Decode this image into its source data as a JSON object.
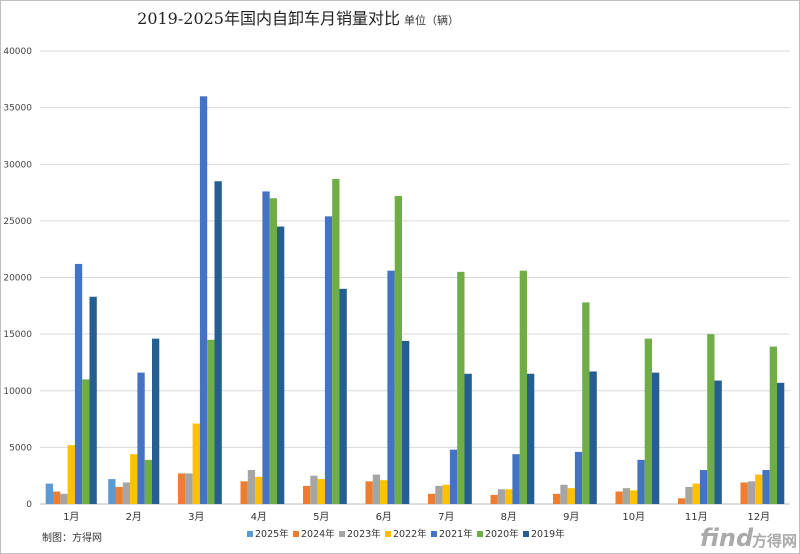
{
  "chart_data": {
    "type": "bar",
    "title": "2019-2025年国内自卸车月销量对比",
    "unit_label": "单位（辆）",
    "categories": [
      "1月",
      "2月",
      "3月",
      "4月",
      "5月",
      "6月",
      "7月",
      "8月",
      "9月",
      "10月",
      "11月",
      "12月"
    ],
    "ylim": [
      0,
      40000
    ],
    "yticks": [
      0,
      5000,
      10000,
      15000,
      20000,
      25000,
      30000,
      35000,
      40000
    ],
    "grid": true,
    "legend_position": "bottom",
    "series": [
      {
        "name": "2025年",
        "color": "#5b9bd5",
        "values": [
          1800,
          2200,
          null,
          null,
          null,
          null,
          null,
          null,
          null,
          null,
          null,
          null
        ]
      },
      {
        "name": "2024年",
        "color": "#ed7d31",
        "values": [
          1100,
          1500,
          2700,
          2000,
          1600,
          2000,
          900,
          800,
          900,
          1100,
          500,
          1900
        ]
      },
      {
        "name": "2023年",
        "color": "#a5a5a5",
        "values": [
          900,
          1900,
          2700,
          3000,
          2500,
          2600,
          1600,
          1300,
          1700,
          1400,
          1500,
          2000
        ]
      },
      {
        "name": "2022年",
        "color": "#ffc000",
        "values": [
          5200,
          4400,
          7100,
          2400,
          2200,
          2100,
          1700,
          1300,
          1400,
          1200,
          1800,
          2600
        ]
      },
      {
        "name": "2021年",
        "color": "#4472c4",
        "values": [
          21200,
          11600,
          36000,
          27600,
          25400,
          20600,
          4800,
          4400,
          4600,
          3900,
          3000,
          3000
        ]
      },
      {
        "name": "2020年",
        "color": "#70ad47",
        "values": [
          11000,
          3900,
          14500,
          27000,
          28700,
          27200,
          20500,
          20600,
          17800,
          14600,
          15000,
          13900
        ]
      },
      {
        "name": "2019年",
        "color": "#255e91",
        "values": [
          18300,
          14600,
          28500,
          24500,
          19000,
          14400,
          11500,
          11500,
          11700,
          11600,
          10900,
          10700
        ]
      }
    ]
  },
  "footer": {
    "source_note": "制图：方得网"
  },
  "watermark": {
    "brand_latin": "find",
    "brand_cn": "方得网"
  }
}
